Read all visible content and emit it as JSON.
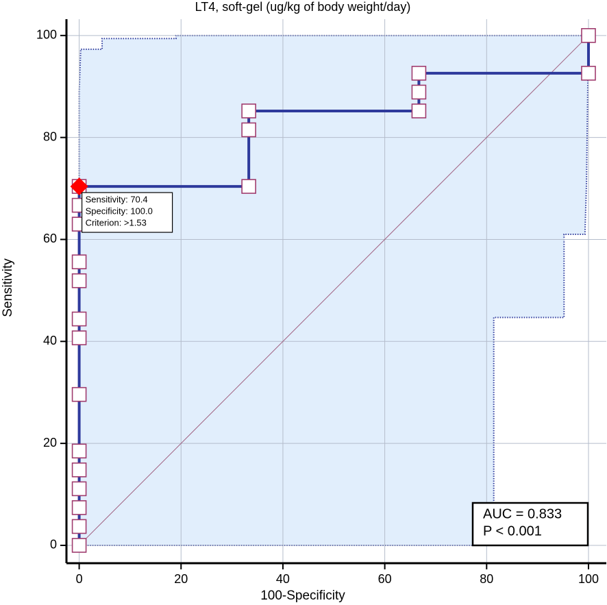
{
  "chart_data": {
    "type": "line",
    "title": "LT4, soft-gel (ug/kg of body weight/day)",
    "x_label": "100-Specificity",
    "y_label": "Sensitivity",
    "x": [
      0,
      0,
      0,
      0,
      0,
      0,
      0,
      0,
      0,
      0,
      0,
      0,
      0,
      0,
      33.3,
      33.3,
      33.3,
      66.7,
      66.7,
      66.7,
      100,
      100
    ],
    "values": [
      0,
      3.7,
      7.4,
      11.1,
      14.8,
      18.5,
      29.6,
      40.7,
      44.4,
      51.9,
      55.6,
      63.0,
      66.7,
      70.4,
      70.4,
      81.5,
      85.2,
      85.2,
      88.9,
      92.6,
      92.6,
      100
    ],
    "color": "#2e3a9c",
    "marker_color": "#a03c6e",
    "confidence_band": {
      "x": [
        0,
        0,
        0.3,
        4.5,
        4.5,
        19,
        19,
        100,
        99.6,
        99.3,
        95.2,
        95.2,
        81.4,
        81.4,
        0
      ],
      "y": [
        0,
        89,
        97.3,
        97.3,
        99.4,
        99.4,
        100,
        100,
        70.8,
        61,
        61,
        44.7,
        44.7,
        0,
        0
      ],
      "fill": "#e1eefc",
      "color": "#2e3a9c"
    },
    "reference_line": {
      "x": [
        0,
        100
      ],
      "y": [
        0,
        100
      ],
      "color": "#a06080"
    },
    "highlight": {
      "x": 0,
      "y": 70.4,
      "color": "#ff0000",
      "lines": [
        "Sensitivity: 70.4",
        "Specificity: 100.0",
        "Criterion: >1.53"
      ]
    },
    "stats_box": [
      "AUC = 0.833",
      "P < 0.001"
    ],
    "xlim": [
      -2.5,
      103.5
    ],
    "ylim": [
      -3.5,
      103.2
    ],
    "xticks": [
      0,
      20,
      40,
      60,
      80,
      100
    ],
    "yticks": [
      0,
      20,
      40,
      60,
      80,
      100
    ],
    "grid": true
  }
}
